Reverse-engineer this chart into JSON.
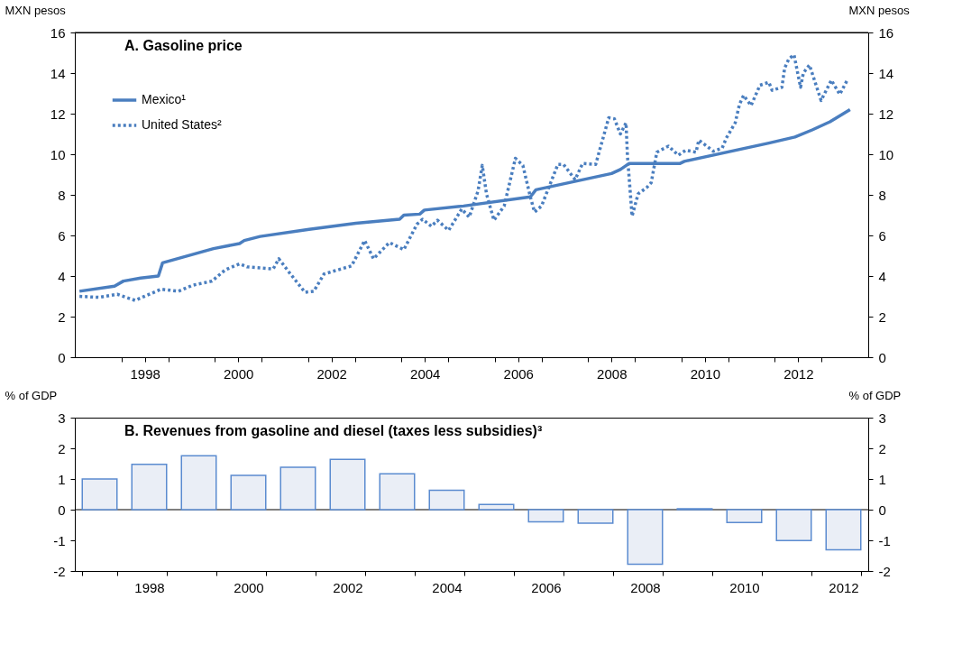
{
  "chart_data": [
    {
      "type": "line",
      "title": "A. Gasoline price",
      "ylabel": "MXN pesos",
      "y2label": "MXN pesos",
      "xlim": [
        1997,
        2014
      ],
      "ylim": [
        0,
        16
      ],
      "y2lim": [
        0,
        16
      ],
      "yticks": [
        0,
        2,
        4,
        6,
        8,
        10,
        12,
        14,
        16
      ],
      "y2ticks": [
        0,
        2,
        4,
        6,
        8,
        10,
        12,
        14,
        16
      ],
      "xticks": [
        {
          "value": 1998,
          "label": null
        },
        {
          "value": 1998.5,
          "label": "1998"
        },
        {
          "value": 1999,
          "label": null
        },
        {
          "value": 2000,
          "label": null
        },
        {
          "value": 2000.5,
          "label": "2000"
        },
        {
          "value": 2001,
          "label": null
        },
        {
          "value": 2002,
          "label": null
        },
        {
          "value": 2002.5,
          "label": "2002"
        },
        {
          "value": 2003,
          "label": null
        },
        {
          "value": 2004,
          "label": null
        },
        {
          "value": 2004.5,
          "label": "2004"
        },
        {
          "value": 2005,
          "label": null
        },
        {
          "value": 2006,
          "label": null
        },
        {
          "value": 2006.5,
          "label": "2006"
        },
        {
          "value": 2007,
          "label": null
        },
        {
          "value": 2008,
          "label": null
        },
        {
          "value": 2008.5,
          "label": "2008"
        },
        {
          "value": 2009,
          "label": null
        },
        {
          "value": 2010,
          "label": null
        },
        {
          "value": 2010.5,
          "label": "2010"
        },
        {
          "value": 2011,
          "label": null
        },
        {
          "value": 2012,
          "label": null
        },
        {
          "value": 2012.5,
          "label": "2012"
        },
        {
          "value": 2013,
          "label": null
        }
      ],
      "legend": "top left",
      "grid": false,
      "marker": "none",
      "series": [
        {
          "name": "Mexico¹",
          "color": "#4a7ebf",
          "line_style": "solid",
          "x": [
            1997.1,
            1997.85,
            1998.04,
            1998.41,
            1998.79,
            1998.88,
            1999.97,
            2000.53,
            2000.63,
            2000.97,
            2002.02,
            2003.02,
            2003.96,
            2004.05,
            2004.39,
            2004.49,
            2005.33,
            2006.76,
            2006.88,
            2008.5,
            2008.69,
            2008.88,
            2009.97,
            2010.06,
            2011.87,
            2012.43,
            2012.8,
            2013.18,
            2013.61
          ],
          "values": [
            3.25,
            3.5,
            3.75,
            3.9,
            4.0,
            4.65,
            5.35,
            5.6,
            5.75,
            5.95,
            6.3,
            6.6,
            6.8,
            7.0,
            7.05,
            7.25,
            7.45,
            7.9,
            8.25,
            9.05,
            9.25,
            9.55,
            9.55,
            9.65,
            10.55,
            10.85,
            11.2,
            11.6,
            12.2
          ]
        },
        {
          "name": "United States²",
          "color": "#4a7ebf",
          "line_style": "dotted",
          "x": [
            1997.1,
            1997.51,
            1997.91,
            1998.29,
            1998.85,
            1999.22,
            1999.53,
            1999.94,
            2000.22,
            2000.53,
            2000.69,
            2001.25,
            2001.37,
            2001.62,
            2001.93,
            2002.12,
            2002.34,
            2002.93,
            2003.21,
            2003.4,
            2003.74,
            2004.05,
            2004.33,
            2004.45,
            2004.64,
            2004.77,
            2005.01,
            2005.29,
            2005.45,
            2005.64,
            2005.73,
            2005.82,
            2005.98,
            2006.2,
            2006.44,
            2006.6,
            2006.76,
            2006.85,
            2007.0,
            2007.35,
            2007.47,
            2007.72,
            2007.88,
            2008.16,
            2008.44,
            2008.56,
            2008.69,
            2008.81,
            2008.84,
            2008.94,
            2009.07,
            2009.25,
            2009.35,
            2009.47,
            2009.72,
            2009.93,
            2010.09,
            2010.31,
            2010.37,
            2010.68,
            2010.87,
            2010.96,
            2011.15,
            2011.24,
            2011.33,
            2011.49,
            2011.68,
            2011.87,
            2011.94,
            2012.15,
            2012.21,
            2012.3,
            2012.41,
            2012.55,
            2012.61,
            2012.74,
            2012.99,
            2013.21,
            2013.39,
            2013.55
          ],
          "values": [
            3.0,
            2.95,
            3.1,
            2.8,
            3.35,
            3.25,
            3.55,
            3.75,
            4.3,
            4.6,
            4.45,
            4.35,
            4.85,
            4.1,
            3.2,
            3.25,
            4.1,
            4.5,
            5.75,
            4.85,
            5.65,
            5.3,
            6.55,
            6.8,
            6.45,
            6.75,
            6.25,
            7.3,
            6.9,
            8.2,
            9.45,
            8.05,
            6.75,
            7.45,
            9.8,
            9.45,
            7.9,
            7.15,
            7.45,
            9.5,
            9.5,
            8.75,
            9.55,
            9.5,
            11.8,
            11.75,
            11.0,
            11.55,
            9.95,
            6.95,
            8.05,
            8.35,
            8.6,
            10.1,
            10.4,
            9.95,
            10.2,
            10.1,
            10.7,
            10.15,
            10.3,
            10.8,
            11.55,
            12.45,
            12.9,
            12.4,
            13.4,
            13.55,
            13.15,
            13.3,
            14.25,
            14.7,
            14.9,
            13.3,
            14.0,
            14.4,
            12.65,
            13.65,
            12.95,
            13.65
          ]
        }
      ]
    },
    {
      "type": "bar",
      "title": "B. Revenues from gasoline and diesel (taxes less subsidies)³",
      "ylabel": "% of GDP",
      "y2label": "% of GDP",
      "ylim": [
        -2,
        3
      ],
      "y2lim": [
        -2,
        3
      ],
      "yticks": [
        -2,
        -1,
        0,
        1,
        2,
        3
      ],
      "y2ticks": [
        -2,
        -1,
        0,
        1,
        2,
        3
      ],
      "grid": false,
      "color": "#eaeef6",
      "ref_lines": [
        {
          "axis": "y",
          "value": 0,
          "color": "#000000"
        }
      ],
      "categories": [
        null,
        "1998",
        null,
        "2000",
        null,
        "2002",
        null,
        "2004",
        null,
        "2006",
        null,
        "2008",
        null,
        "2010",
        null,
        "2012"
      ],
      "values": [
        1.0,
        1.48,
        1.76,
        1.12,
        1.38,
        1.64,
        1.17,
        0.63,
        0.17,
        -0.4,
        -0.44,
        -1.78,
        0.03,
        -0.42,
        -1.01,
        -1.31
      ]
    }
  ]
}
